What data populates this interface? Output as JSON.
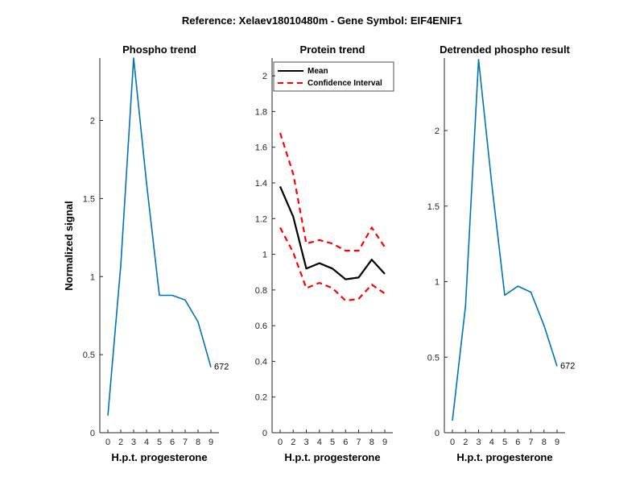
{
  "figure_title": "Reference:  Xelaev18010480m - Gene Symbol:  EIF4ENIF1",
  "colors": {
    "blue": "#0072BD",
    "black": "#000000",
    "red": "#FF0000",
    "axis": "#262626"
  },
  "chart_data": [
    {
      "type": "line",
      "title": "Phospho trend",
      "xlabel": "H.p.t. progesterone",
      "ylabel": "Normalized signal",
      "x": [
        0,
        2,
        3,
        4,
        5,
        6,
        7,
        8,
        9
      ],
      "xticks": [
        "0",
        "2",
        "3",
        "4",
        "5",
        "6",
        "7",
        "8",
        "9"
      ],
      "yticks": [
        "0",
        "0.5",
        "1",
        "1.5",
        "2"
      ],
      "ytick_values": [
        0,
        0.5,
        1,
        1.5,
        2
      ],
      "ylim": [
        0,
        2.4
      ],
      "grid": false,
      "series": [
        {
          "name": "phospho",
          "color": "#0072BD",
          "dash": "solid",
          "values": [
            0.11,
            1.07,
            2.4,
            1.6,
            0.88,
            0.88,
            0.85,
            0.71,
            0.42
          ]
        }
      ],
      "annotation": {
        "text": "672",
        "at_index": 8
      }
    },
    {
      "type": "line",
      "title": "Protein trend",
      "xlabel": "H.p.t. progesterone",
      "ylabel": "",
      "x": [
        0,
        2,
        3,
        4,
        5,
        6,
        7,
        8,
        9
      ],
      "xticks": [
        "0",
        "2",
        "3",
        "4",
        "5",
        "6",
        "7",
        "8",
        "9"
      ],
      "yticks": [
        "0",
        "0.2",
        "0.4",
        "0.6",
        "0.8",
        "1",
        "1.2",
        "1.4",
        "1.6",
        "1.8",
        "2"
      ],
      "ytick_values": [
        0,
        0.2,
        0.4,
        0.6,
        0.8,
        1,
        1.2,
        1.4,
        1.6,
        1.8,
        2
      ],
      "ylim": [
        0,
        2.1
      ],
      "grid": false,
      "legend": {
        "placement": "top-left",
        "entries": [
          "Mean",
          "Confidence Interval"
        ]
      },
      "series": [
        {
          "name": "Mean",
          "color": "#000000",
          "dash": "solid",
          "values": [
            1.38,
            1.21,
            0.92,
            0.95,
            0.92,
            0.86,
            0.87,
            0.97,
            0.89
          ]
        },
        {
          "name": "Confidence Interval",
          "color": "#FF0000",
          "dash": "dashed",
          "values": [
            1.68,
            1.45,
            1.06,
            1.08,
            1.06,
            1.02,
            1.02,
            1.15,
            1.04
          ]
        },
        {
          "name": "Confidence Interval (lower)",
          "color": "#FF0000",
          "dash": "dashed",
          "values": [
            1.15,
            1.01,
            0.81,
            0.84,
            0.81,
            0.74,
            0.75,
            0.83,
            0.78
          ]
        }
      ]
    },
    {
      "type": "line",
      "title": "Detrended phospho result",
      "xlabel": "H.p.t. progesterone",
      "ylabel": "",
      "x": [
        0,
        2,
        3,
        4,
        5,
        6,
        7,
        8,
        9
      ],
      "xticks": [
        "0",
        "2",
        "3",
        "4",
        "5",
        "6",
        "7",
        "8",
        "9"
      ],
      "yticks": [
        "0",
        "0.5",
        "1",
        "1.5",
        "2"
      ],
      "ytick_values": [
        0,
        0.5,
        1,
        1.5,
        2
      ],
      "ylim": [
        0,
        2.48
      ],
      "grid": false,
      "series": [
        {
          "name": "detrended",
          "color": "#0072BD",
          "dash": "solid",
          "values": [
            0.08,
            0.84,
            2.47,
            1.65,
            0.91,
            0.97,
            0.93,
            0.71,
            0.44
          ]
        }
      ],
      "annotation": {
        "text": "672",
        "at_index": 8
      }
    }
  ]
}
